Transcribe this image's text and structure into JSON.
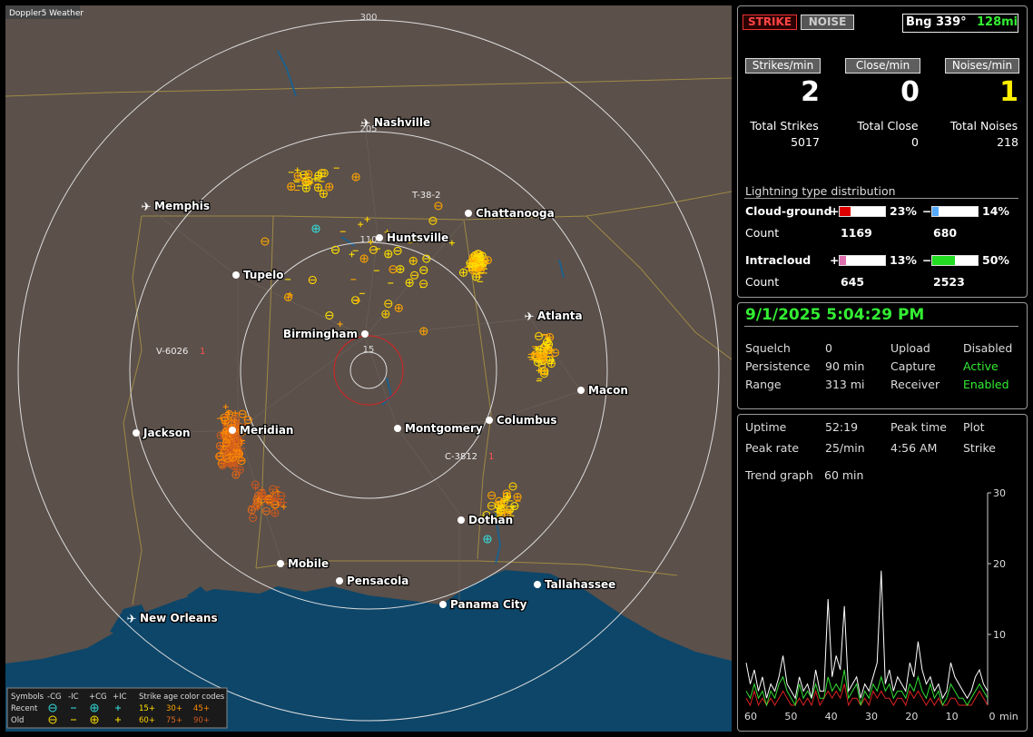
{
  "header": {
    "app_title": "Doppler5 Weather"
  },
  "map": {
    "range_labels": [
      "300",
      "205",
      "110",
      "15"
    ],
    "cities": [
      {
        "name": "Nashville",
        "airport": true
      },
      {
        "name": "Memphis",
        "airport": true
      },
      {
        "name": "Chattanooga",
        "airport": false
      },
      {
        "name": "Huntsville",
        "airport": false
      },
      {
        "name": "Tupelo",
        "airport": false
      },
      {
        "name": "Atlanta",
        "airport": true
      },
      {
        "name": "Birmingham",
        "airport": false
      },
      {
        "name": "Macon",
        "airport": false
      },
      {
        "name": "Jackson",
        "airport": false
      },
      {
        "name": "Meridian",
        "airport": false
      },
      {
        "name": "Montgomery",
        "airport": false
      },
      {
        "name": "Columbus",
        "airport": false
      },
      {
        "name": "Dothan",
        "airport": false
      },
      {
        "name": "Mobile",
        "airport": false
      },
      {
        "name": "Pensacola",
        "airport": false
      },
      {
        "name": "Tallahassee",
        "airport": false
      },
      {
        "name": "Panama City",
        "airport": false
      },
      {
        "name": "New Orleans",
        "airport": true
      }
    ],
    "storms": [
      {
        "id": "T-38-2",
        "count": null
      },
      {
        "id": "V-6026",
        "count": "1"
      },
      {
        "id": "C-3812",
        "count": "1"
      }
    ],
    "legend": {
      "symbols_label": "Symbols",
      "symbol_types": [
        "-CG",
        "-IC",
        "+CG",
        "+IC"
      ],
      "age_title": "Strike age color codes",
      "rows": [
        {
          "label": "Recent",
          "ages": [
            "15+",
            "30+",
            "45+"
          ]
        },
        {
          "label": "Old",
          "ages": [
            "60+",
            "75+",
            "90+"
          ]
        }
      ]
    }
  },
  "status": {
    "modes": [
      "STRIKE",
      "NOISE"
    ],
    "bearing": "Bng 339°",
    "distance": "128mi",
    "rates": [
      {
        "label": "Strikes/min",
        "value": 2
      },
      {
        "label": "Close/min",
        "value": 0
      },
      {
        "label": "Noises/min",
        "value": 1
      }
    ],
    "totals": [
      {
        "label": "Total Strikes",
        "value": 5017
      },
      {
        "label": "Total Close",
        "value": 0
      },
      {
        "label": "Total Noises",
        "value": 218
      }
    ],
    "distribution": {
      "title": "Lightning type distribution",
      "count_label": "Count",
      "rows": [
        {
          "name": "Cloud-ground",
          "positive": {
            "value": 23,
            "label": "23%"
          },
          "negative": {
            "value": 14,
            "label": "14%"
          },
          "positive_count": 1169,
          "negative_count": 680
        },
        {
          "name": "Intracloud",
          "positive": {
            "value": 13,
            "label": "13%"
          },
          "negative": {
            "value": 50,
            "label": "50%"
          },
          "positive_count": 645,
          "negative_count": 2523
        }
      ]
    }
  },
  "settings": {
    "datetime": "9/1/2025 5:04:29 PM",
    "rows": [
      [
        "Squelch",
        "0",
        "Upload",
        "Disabled"
      ],
      [
        "Persistence",
        "90 min",
        "Capture",
        "Active"
      ],
      [
        "Range",
        "313 mi",
        "Receiver",
        "Enabled"
      ]
    ]
  },
  "stats": {
    "rows": [
      [
        "Uptime",
        "52:19",
        "Peak time",
        "Plot"
      ],
      [
        "Peak rate",
        "25/min",
        "4:56 AM",
        "Strike"
      ]
    ],
    "trend_label": "Trend graph",
    "trend_value": "60 min",
    "trend_graph": {
      "ylim": [
        0,
        30
      ],
      "yticks": [
        10,
        20,
        30
      ],
      "xticks": [
        60,
        50,
        40,
        30,
        20,
        10,
        0
      ],
      "x_unit": "min",
      "series": [
        {
          "color": "#ffffff",
          "values": [
            6,
            3,
            5,
            2,
            4,
            1,
            3,
            2,
            4,
            7,
            3,
            2,
            1,
            4,
            2,
            3,
            1,
            5,
            2,
            2,
            15,
            4,
            7,
            5,
            14,
            2,
            3,
            4,
            1,
            3,
            2,
            4,
            6,
            19,
            3,
            5,
            2,
            4,
            3,
            2,
            6,
            4,
            9,
            5,
            3,
            4,
            2,
            3,
            1,
            2,
            6,
            4,
            3,
            2,
            1,
            2,
            4,
            5,
            3,
            2
          ]
        },
        {
          "color": "#33dd33",
          "values": [
            2,
            1,
            3,
            1,
            2,
            0,
            2,
            1,
            3,
            4,
            2,
            1,
            0,
            3,
            1,
            2,
            1,
            3,
            1,
            1,
            4,
            2,
            3,
            2,
            5,
            1,
            2,
            3,
            0,
            2,
            1,
            3,
            2,
            4,
            2,
            3,
            1,
            2,
            2,
            1,
            3,
            2,
            4,
            2,
            1,
            3,
            1,
            2,
            0,
            1,
            3,
            2,
            1,
            1,
            0,
            1,
            2,
            3,
            2,
            1
          ]
        },
        {
          "color": "#dd2222",
          "values": [
            1,
            0,
            2,
            0,
            1,
            0,
            1,
            0,
            1,
            2,
            1,
            0,
            0,
            1,
            0,
            1,
            0,
            2,
            0,
            1,
            2,
            1,
            2,
            1,
            3,
            0,
            1,
            1,
            0,
            1,
            0,
            2,
            1,
            2,
            1,
            1,
            0,
            1,
            1,
            0,
            2,
            1,
            2,
            1,
            0,
            1,
            0,
            1,
            0,
            0,
            1,
            1,
            0,
            0,
            0,
            0,
            1,
            2,
            1,
            0
          ]
        }
      ]
    }
  }
}
